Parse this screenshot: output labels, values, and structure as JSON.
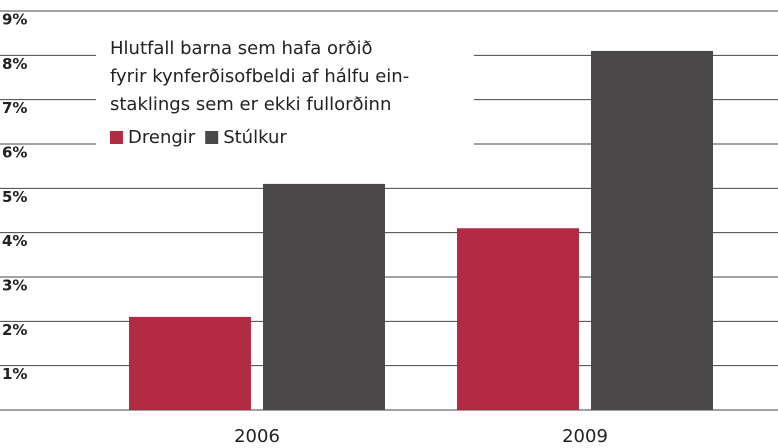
{
  "chart_data": {
    "type": "bar",
    "title": [
      "Hlutfall barna sem hafa orðið",
      "fyrir kynferðisofbeldi af hálfu ein-",
      "staklings sem er ekki fullorðinn"
    ],
    "categories": [
      "2006",
      "2009"
    ],
    "series": [
      {
        "name": "Drengir",
        "color": "#b32b42",
        "values": [
          2.1,
          4.1
        ]
      },
      {
        "name": "Stúlkur",
        "color": "#4a4849",
        "values": [
          5.1,
          8.1
        ]
      }
    ],
    "ylim": [
      0,
      9
    ],
    "yticks": [
      {
        "value": 1,
        "label": "1%"
      },
      {
        "value": 2,
        "label": "2%"
      },
      {
        "value": 3,
        "label": "3%"
      },
      {
        "value": 4,
        "label": "4%"
      },
      {
        "value": 5,
        "label": "5%"
      },
      {
        "value": 6,
        "label": "6%"
      },
      {
        "value": 7,
        "label": "7%"
      },
      {
        "value": 8,
        "label": "8%"
      },
      {
        "value": 9,
        "label": "9%"
      }
    ],
    "grid": true,
    "legend": "top-left"
  }
}
